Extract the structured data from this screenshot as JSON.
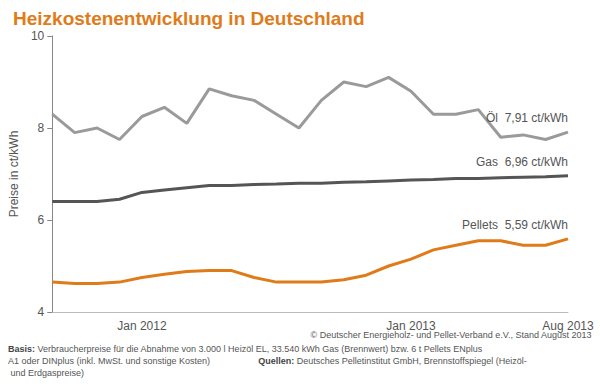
{
  "chart_data": {
    "type": "line",
    "title": "Heizkostenentwicklung in Deutschland",
    "y_label": "Preise in ct/kWh",
    "categories": [
      null,
      null,
      null,
      null,
      "Jan 2012",
      null,
      null,
      null,
      null,
      null,
      null,
      null,
      null,
      null,
      null,
      null,
      "Jan 2013",
      null,
      null,
      null,
      null,
      null,
      null,
      "Aug 2013"
    ],
    "series": [
      {
        "name": "Öl",
        "color": "#9a9a9a",
        "values": [
          8.3,
          7.9,
          8.0,
          7.75,
          8.25,
          8.45,
          8.1,
          8.85,
          8.7,
          8.6,
          8.3,
          8.0,
          8.6,
          9.0,
          8.9,
          9.1,
          8.8,
          8.3,
          8.3,
          8.4,
          7.8,
          7.85,
          7.75,
          7.91
        ],
        "value_labels": [
          null,
          null,
          null,
          null,
          null,
          null,
          null,
          null,
          null,
          null,
          null,
          null,
          null,
          null,
          null,
          null,
          null,
          null,
          null,
          null,
          null,
          null,
          null,
          "7,91 ct/kWh"
        ]
      },
      {
        "name": "Gas",
        "color": "#555555",
        "values": [
          6.4,
          6.4,
          6.4,
          6.45,
          6.6,
          6.65,
          6.7,
          6.75,
          6.75,
          6.77,
          6.78,
          6.8,
          6.8,
          6.82,
          6.83,
          6.85,
          6.87,
          6.88,
          6.9,
          6.9,
          6.92,
          6.93,
          6.94,
          6.96
        ],
        "value_labels": [
          null,
          null,
          null,
          null,
          null,
          null,
          null,
          null,
          null,
          null,
          null,
          null,
          null,
          null,
          null,
          null,
          null,
          null,
          null,
          null,
          null,
          null,
          null,
          "6,96 ct/kWh"
        ]
      },
      {
        "name": "Pellets",
        "color": "#e07b1a",
        "values": [
          4.65,
          4.62,
          4.62,
          4.65,
          4.75,
          4.82,
          4.88,
          4.9,
          4.9,
          4.75,
          4.65,
          4.65,
          4.65,
          4.7,
          4.8,
          5.0,
          5.15,
          5.35,
          5.45,
          5.55,
          5.55,
          5.45,
          5.45,
          5.59
        ],
        "value_labels": [
          null,
          null,
          null,
          null,
          null,
          null,
          null,
          null,
          null,
          null,
          null,
          null,
          null,
          null,
          null,
          null,
          null,
          null,
          null,
          null,
          null,
          null,
          null,
          "5,59 ct/kWh"
        ]
      }
    ],
    "ylim": [
      4,
      10
    ],
    "yticks": [
      4,
      6,
      8,
      10
    ],
    "grid": false,
    "source": "© Deutscher Energieholz- und Pellet-Verband e.V., Stand August 2013",
    "footnote_label": "Basis:",
    "footnote": "Verbraucherpreise für die Abnahme von 3.000 l Heizöl EL, 33.540 kWh Gas (Brennwert) bzw. 6 t Pellets ENplus A1 oder DINplus (inkl. MwSt. und sonstige Kosten)",
    "sources_label": "Quellen:",
    "sources": "Deutsches Pelletinstitut GmbH, Brennstoffspiegel (Heizöl- und Erdgaspreise)"
  }
}
